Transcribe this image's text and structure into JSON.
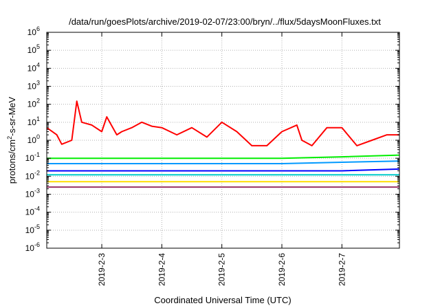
{
  "chart_data": {
    "type": "line",
    "title": "/data/run/goesPlots/archive/2019-02-07/23:00/bryn/../flux/5daysMoonFluxes.txt",
    "xlabel": "Coordinated Universal Time (UTC)",
    "ylabel": "protons/cm²-s-sr-MeV",
    "ylabel_parts": {
      "a": "protons/cm",
      "sup": "2",
      "b": "-s-sr-MeV"
    },
    "y_scale": "log",
    "ylim": [
      1e-06,
      1000000.0
    ],
    "xlim": [
      "2019-02-02 02:00",
      "2019-02-07 23:00"
    ],
    "grid": true,
    "x_ticks": [
      {
        "label": "2019-2-3",
        "x": "2019-02-03"
      },
      {
        "label": "2019-2-4",
        "x": "2019-02-04"
      },
      {
        "label": "2019-2-5",
        "x": "2019-02-05"
      },
      {
        "label": "2019-2-6",
        "x": "2019-02-06"
      },
      {
        "label": "2019-2-7",
        "x": "2019-02-07"
      }
    ],
    "y_ticks": [
      {
        "base": "10",
        "exp": "-6",
        "value": 1e-06
      },
      {
        "base": "10",
        "exp": "-5",
        "value": 1e-05
      },
      {
        "base": "10",
        "exp": "-4",
        "value": 0.0001
      },
      {
        "base": "10",
        "exp": "-3",
        "value": 0.001
      },
      {
        "base": "10",
        "exp": "-2",
        "value": 0.01
      },
      {
        "base": "10",
        "exp": "-1",
        "value": 0.1
      },
      {
        "base": "10",
        "exp": "0",
        "value": 1
      },
      {
        "base": "10",
        "exp": "1",
        "value": 10
      },
      {
        "base": "10",
        "exp": "2",
        "value": 100
      },
      {
        "base": "10",
        "exp": "3",
        "value": 1000
      },
      {
        "base": "10",
        "exp": "4",
        "value": 10000
      },
      {
        "base": "10",
        "exp": "5",
        "value": 100000
      },
      {
        "base": "10",
        "exp": "6",
        "value": 1000000
      }
    ],
    "series": [
      {
        "color": "#ff0000",
        "x": [
          "2019-02-02 02:00",
          "2019-02-02 06:00",
          "2019-02-02 08:00",
          "2019-02-02 12:00",
          "2019-02-02 14:00",
          "2019-02-02 16:00",
          "2019-02-02 20:00",
          "2019-02-03 00:00",
          "2019-02-03 02:00",
          "2019-02-03 06:00",
          "2019-02-03 08:00",
          "2019-02-03 12:00",
          "2019-02-03 16:00",
          "2019-02-03 20:00",
          "2019-02-04 00:00",
          "2019-02-04 06:00",
          "2019-02-04 12:00",
          "2019-02-04 18:00",
          "2019-02-05 00:00",
          "2019-02-05 06:00",
          "2019-02-05 12:00",
          "2019-02-05 18:00",
          "2019-02-06 00:00",
          "2019-02-06 06:00",
          "2019-02-06 08:00",
          "2019-02-06 12:00",
          "2019-02-06 18:00",
          "2019-02-07 00:00",
          "2019-02-07 06:00",
          "2019-02-07 12:00",
          "2019-02-07 18:00",
          "2019-02-07 23:00"
        ],
        "y": [
          5,
          2,
          0.6,
          1,
          150,
          10,
          7,
          3,
          20,
          2,
          3,
          5,
          10,
          6,
          5,
          2,
          5,
          1.5,
          10,
          3,
          0.5,
          0.5,
          3,
          7,
          1,
          0.5,
          5,
          5,
          0.5,
          1,
          2,
          2
        ]
      },
      {
        "color": "#00ee00",
        "x": [
          "2019-02-02 02:00",
          "2019-02-03 00:00",
          "2019-02-04 00:00",
          "2019-02-05 00:00",
          "2019-02-06 00:00",
          "2019-02-07 00:00",
          "2019-02-07 23:00"
        ],
        "y": [
          0.1,
          0.1,
          0.1,
          0.1,
          0.1,
          0.12,
          0.15
        ]
      },
      {
        "color": "#0099ff",
        "x": [
          "2019-02-02 02:00",
          "2019-02-03 00:00",
          "2019-02-04 00:00",
          "2019-02-05 00:00",
          "2019-02-06 00:00",
          "2019-02-07 00:00",
          "2019-02-07 23:00"
        ],
        "y": [
          0.05,
          0.05,
          0.05,
          0.05,
          0.05,
          0.06,
          0.07
        ]
      },
      {
        "color": "#0000ff",
        "x": [
          "2019-02-02 02:00",
          "2019-02-03 00:00",
          "2019-02-04 00:00",
          "2019-02-05 00:00",
          "2019-02-06 00:00",
          "2019-02-07 00:00",
          "2019-02-07 23:00"
        ],
        "y": [
          0.02,
          0.02,
          0.02,
          0.02,
          0.02,
          0.02,
          0.025
        ]
      },
      {
        "color": "#00cccc",
        "x": [
          "2019-02-02 02:00",
          "2019-02-03 00:00",
          "2019-02-04 00:00",
          "2019-02-05 00:00",
          "2019-02-06 00:00",
          "2019-02-07 00:00",
          "2019-02-07 23:00"
        ],
        "y": [
          0.012,
          0.012,
          0.012,
          0.012,
          0.012,
          0.012,
          0.012
        ]
      },
      {
        "color": "#ffdd00",
        "x": [
          "2019-02-02 02:00",
          "2019-02-03 00:00",
          "2019-02-04 00:00",
          "2019-02-05 00:00",
          "2019-02-06 00:00",
          "2019-02-07 00:00",
          "2019-02-07 23:00"
        ],
        "y": [
          0.005,
          0.005,
          0.005,
          0.005,
          0.005,
          0.005,
          0.005
        ]
      },
      {
        "color": "#993366",
        "x": [
          "2019-02-02 02:00",
          "2019-02-03 00:00",
          "2019-02-04 00:00",
          "2019-02-05 00:00",
          "2019-02-06 00:00",
          "2019-02-07 00:00",
          "2019-02-07 23:00"
        ],
        "y": [
          0.0025,
          0.0025,
          0.0025,
          0.0025,
          0.0025,
          0.0025,
          0.0025
        ]
      }
    ]
  }
}
